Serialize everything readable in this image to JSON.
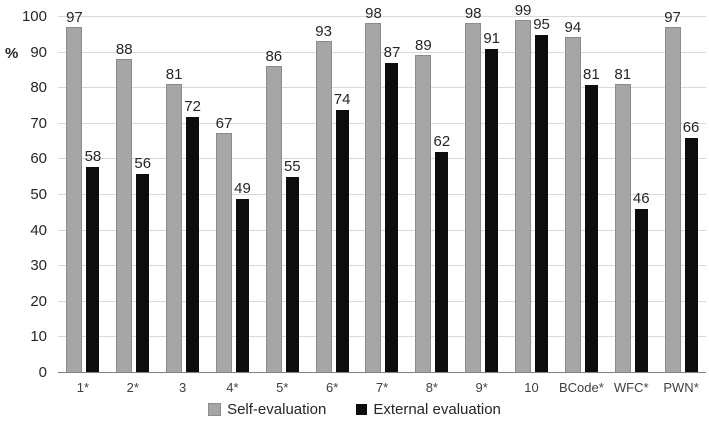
{
  "chart_data": {
    "type": "bar",
    "title": "",
    "categories": [
      "1*",
      "2*",
      "3",
      "4*",
      "5*",
      "6*",
      "7*",
      "8*",
      "9*",
      "10",
      "BCode*",
      "WFC*",
      "PWN*"
    ],
    "series": [
      {
        "name": "Self-evaluation",
        "color": "#a6a6a6",
        "values": [
          97,
          88,
          81,
          67,
          86,
          93,
          98,
          89,
          98,
          99,
          94,
          81,
          97
        ]
      },
      {
        "name": "External evaluation",
        "color": "#0d0d0d",
        "values": [
          58,
          56,
          72,
          49,
          55,
          74,
          87,
          62,
          91,
          95,
          81,
          46,
          66
        ]
      }
    ],
    "ylabel": "%",
    "xlabel": "",
    "ylim": [
      0,
      100
    ],
    "yticks": [
      0,
      10,
      20,
      30,
      40,
      50,
      60,
      70,
      80,
      90,
      100
    ],
    "grid": "horizontal",
    "show_value_labels": true,
    "legend_position": "bottom"
  },
  "colors": {
    "gridline": "#d9d9d9",
    "axis_line": "#808080",
    "value_label": "#262626",
    "tick_label": "#404040",
    "background": "#ffffff"
  }
}
